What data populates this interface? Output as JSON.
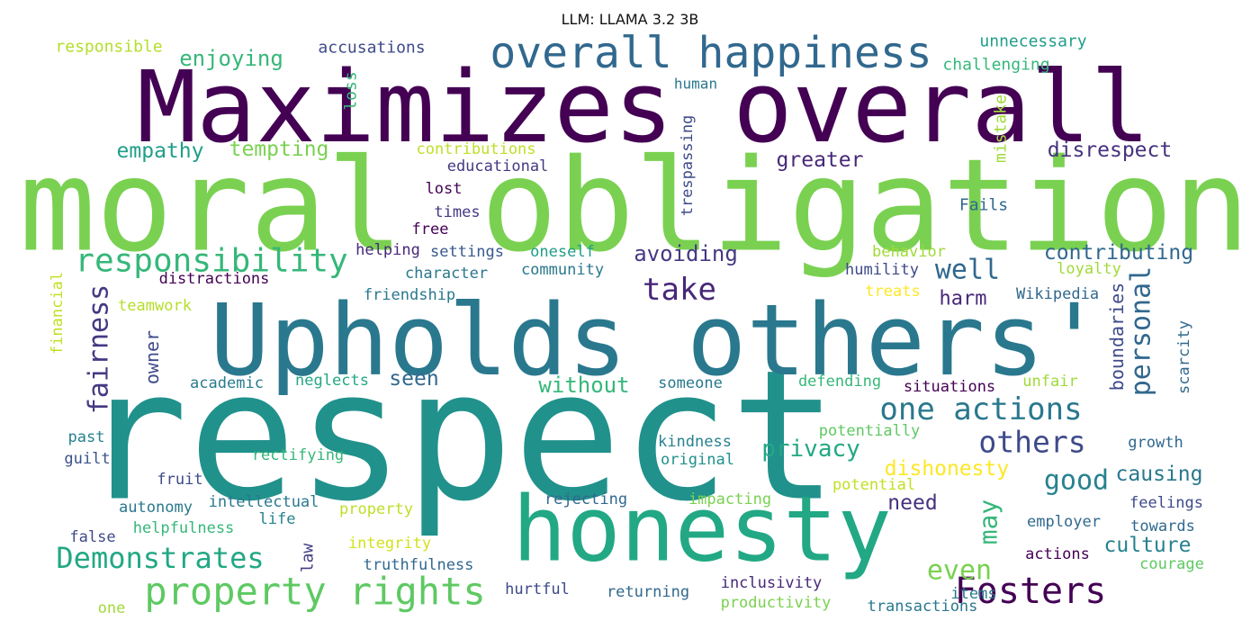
{
  "title": "LLM: LLAMA 3.2 3B",
  "words": [
    {
      "t": "respect",
      "c": "#21918c"
    },
    {
      "t": "moral obligation",
      "c": "#7ad151"
    },
    {
      "t": "Maximizes overall",
      "c": "#440154"
    },
    {
      "t": "Upholds others'",
      "c": "#2a788e"
    },
    {
      "t": "honesty",
      "c": "#22a884"
    },
    {
      "t": "overall happiness",
      "c": "#31688e"
    },
    {
      "t": "property rights",
      "c": "#5ec962"
    },
    {
      "t": "responsibility",
      "c": "#35b779"
    },
    {
      "t": "Fosters",
      "c": "#440154"
    },
    {
      "t": "Demonstrates",
      "c": "#22a884"
    },
    {
      "t": "one actions",
      "c": "#2a788e"
    },
    {
      "t": "take",
      "c": "#482878"
    },
    {
      "t": "others",
      "c": "#3e4a89"
    },
    {
      "t": "personal",
      "c": "#31688e"
    },
    {
      "t": "even",
      "c": "#7ad151"
    },
    {
      "t": "good",
      "c": "#26828e"
    },
    {
      "t": "fairness",
      "c": "#443983"
    },
    {
      "t": "contributing",
      "c": "#31688e"
    },
    {
      "t": "may",
      "c": "#35b779"
    },
    {
      "t": "well",
      "c": "#31688e"
    },
    {
      "t": "avoiding",
      "c": "#443983"
    },
    {
      "t": "privacy",
      "c": "#22a884"
    },
    {
      "t": "causing",
      "c": "#2a788e"
    },
    {
      "t": "dishonesty",
      "c": "#fde725"
    },
    {
      "t": "culture",
      "c": "#26828e"
    },
    {
      "t": "disrespect",
      "c": "#46327e"
    },
    {
      "t": "enjoying",
      "c": "#35b779"
    },
    {
      "t": "empathy",
      "c": "#1f9e89"
    },
    {
      "t": "tempting",
      "c": "#7ad151"
    },
    {
      "t": "greater",
      "c": "#482878"
    },
    {
      "t": "without",
      "c": "#35b779"
    },
    {
      "t": "seen",
      "c": "#31688e"
    },
    {
      "t": "boundaries",
      "c": "#3e4a89"
    },
    {
      "t": "need",
      "c": "#46327e"
    },
    {
      "t": "harm",
      "c": "#482878"
    },
    {
      "t": "law",
      "c": "#433e85"
    },
    {
      "t": "owner",
      "c": "#3e4a89"
    },
    {
      "t": "accusations",
      "c": "#3e4a89"
    },
    {
      "t": "responsible",
      "c": "#b5de2b"
    },
    {
      "t": "unnecessary",
      "c": "#1f9e89"
    },
    {
      "t": "challenging",
      "c": "#35b779"
    },
    {
      "t": "human",
      "c": "#2a788e"
    },
    {
      "t": "loss",
      "c": "#35b779"
    },
    {
      "t": "mistake",
      "c": "#a0da39"
    },
    {
      "t": "trespassing",
      "c": "#3e4a89"
    },
    {
      "t": "contributions",
      "c": "#bddf26"
    },
    {
      "t": "educational",
      "c": "#443983"
    },
    {
      "t": "lost",
      "c": "#440154"
    },
    {
      "t": "times",
      "c": "#443983"
    },
    {
      "t": "free",
      "c": "#440154"
    },
    {
      "t": "Fails",
      "c": "#31688e"
    },
    {
      "t": "helping",
      "c": "#482878"
    },
    {
      "t": "settings",
      "c": "#38588c"
    },
    {
      "t": "oneself",
      "c": "#1f9e89"
    },
    {
      "t": "behavior",
      "c": "#a0da39"
    },
    {
      "t": "character",
      "c": "#2a788e"
    },
    {
      "t": "community",
      "c": "#2a788e"
    },
    {
      "t": "distractions",
      "c": "#440154"
    },
    {
      "t": "humility",
      "c": "#3e4a89"
    },
    {
      "t": "loyalty",
      "c": "#a0da39"
    },
    {
      "t": "financial",
      "c": "#c2df23"
    },
    {
      "t": "teamwork",
      "c": "#b5de2b"
    },
    {
      "t": "friendship",
      "c": "#2a788e"
    },
    {
      "t": "treats",
      "c": "#fde725"
    },
    {
      "t": "Wikipedia",
      "c": "#31688e"
    },
    {
      "t": "scarcity",
      "c": "#31688e"
    },
    {
      "t": "academic",
      "c": "#287c8e"
    },
    {
      "t": "neglects",
      "c": "#22a884"
    },
    {
      "t": "someone",
      "c": "#2a788e"
    },
    {
      "t": "defending",
      "c": "#35b779"
    },
    {
      "t": "situations",
      "c": "#440154"
    },
    {
      "t": "unfair",
      "c": "#a0da39"
    },
    {
      "t": "potentially",
      "c": "#5ec962"
    },
    {
      "t": "past",
      "c": "#26828e"
    },
    {
      "t": "guilt",
      "c": "#3b528b"
    },
    {
      "t": "rectifying",
      "c": "#35b779"
    },
    {
      "t": "kindness",
      "c": "#26828e"
    },
    {
      "t": "original",
      "c": "#21918c"
    },
    {
      "t": "growth",
      "c": "#31688e"
    },
    {
      "t": "fruit",
      "c": "#3e4a89"
    },
    {
      "t": "autonomy",
      "c": "#2a788e"
    },
    {
      "t": "intellectual",
      "c": "#2a788e"
    },
    {
      "t": "potential",
      "c": "#c2df23"
    },
    {
      "t": "rejecting",
      "c": "#31688e"
    },
    {
      "t": "impacting",
      "c": "#7ad151"
    },
    {
      "t": "feelings",
      "c": "#3e4a89"
    },
    {
      "t": "life",
      "c": "#26828e"
    },
    {
      "t": "property",
      "c": "#bddf26"
    },
    {
      "t": "employer",
      "c": "#31688e"
    },
    {
      "t": "towards",
      "c": "#31688e"
    },
    {
      "t": "false",
      "c": "#3e4a89"
    },
    {
      "t": "helpfulness",
      "c": "#35b779"
    },
    {
      "t": "integrity",
      "c": "#d2e21b"
    },
    {
      "t": "actions",
      "c": "#440154"
    },
    {
      "t": "truthfulness",
      "c": "#31688e"
    },
    {
      "t": "courage",
      "c": "#5ec962"
    },
    {
      "t": "inclusivity",
      "c": "#482878"
    },
    {
      "t": "hurtful",
      "c": "#3e4a89"
    },
    {
      "t": "returning",
      "c": "#31688e"
    },
    {
      "t": "items",
      "c": "#2a788e"
    },
    {
      "t": "one",
      "c": "#a0da39"
    },
    {
      "t": "productivity",
      "c": "#7ad151"
    },
    {
      "t": "transactions",
      "c": "#2a788e"
    }
  ]
}
